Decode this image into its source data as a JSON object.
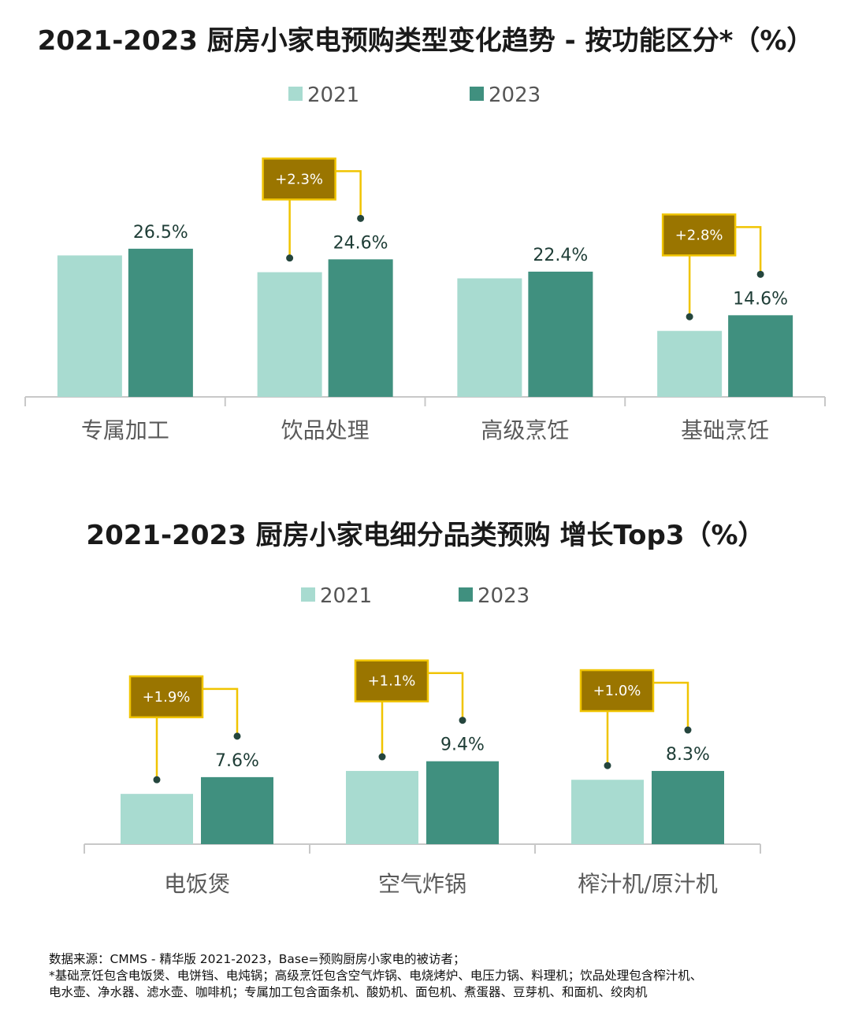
{
  "chart_data": [
    {
      "type": "bar",
      "title": "2021-2023 厨房小家电预购类型变化趋势 - 按功能区分*（%）",
      "categories": [
        "专属加工",
        "饮品处理",
        "高级烹饪",
        "基础烹饪"
      ],
      "series": [
        {
          "name": "2021",
          "values": [
            25.3,
            22.3,
            21.2,
            11.8
          ]
        },
        {
          "name": "2023",
          "values": [
            26.5,
            24.6,
            22.4,
            14.6
          ]
        }
      ],
      "data_labels": [
        "26.5%",
        "24.6%",
        "22.4%",
        "14.6%"
      ],
      "callouts": [
        {
          "category_index": 1,
          "text": "+2.3%"
        },
        {
          "category_index": 3,
          "text": "+2.8%"
        }
      ],
      "ylim": [
        0,
        30
      ],
      "legend_position": "top-center",
      "grid": false,
      "colors": {
        "2021": "#a8dbd0",
        "2023": "#40907f",
        "callout": "#9a7500",
        "connector": "#f0c400"
      }
    },
    {
      "type": "bar",
      "title": "2021-2023 厨房小家电细分品类预购  增长Top3（%）",
      "categories": [
        "电饭煲",
        "空气炸锅",
        "榨汁机/原汁机"
      ],
      "series": [
        {
          "name": "2021",
          "values": [
            5.7,
            8.3,
            7.3
          ]
        },
        {
          "name": "2023",
          "values": [
            7.6,
            9.4,
            8.3
          ]
        }
      ],
      "data_labels": [
        "7.6%",
        "9.4%",
        "8.3%"
      ],
      "callouts": [
        {
          "category_index": 0,
          "text": "+1.9%"
        },
        {
          "category_index": 1,
          "text": "+1.1%"
        },
        {
          "category_index": 2,
          "text": "+1.0%"
        }
      ],
      "ylim": [
        0,
        10
      ],
      "legend_position": "top-center",
      "grid": false,
      "colors": {
        "2021": "#a8dbd0",
        "2023": "#40907f",
        "callout": "#9a7500",
        "connector": "#f0c400"
      }
    }
  ],
  "footnote": {
    "line1": "数据来源：CMMS - 精华版 2021-2023，Base=预购厨房小家电的被访者；",
    "line2": "*基础烹饪包含电饭煲、电饼铛、电炖锅；高级烹饪包含空气炸锅、电烧烤炉、电压力锅、料理机；饮品处理包含榨汁机、",
    "line3": "电水壶、净水器、滤水壶、咖啡机；专属加工包含面条机、酸奶机、面包机、煮蛋器、豆芽机、和面机、绞肉机"
  }
}
